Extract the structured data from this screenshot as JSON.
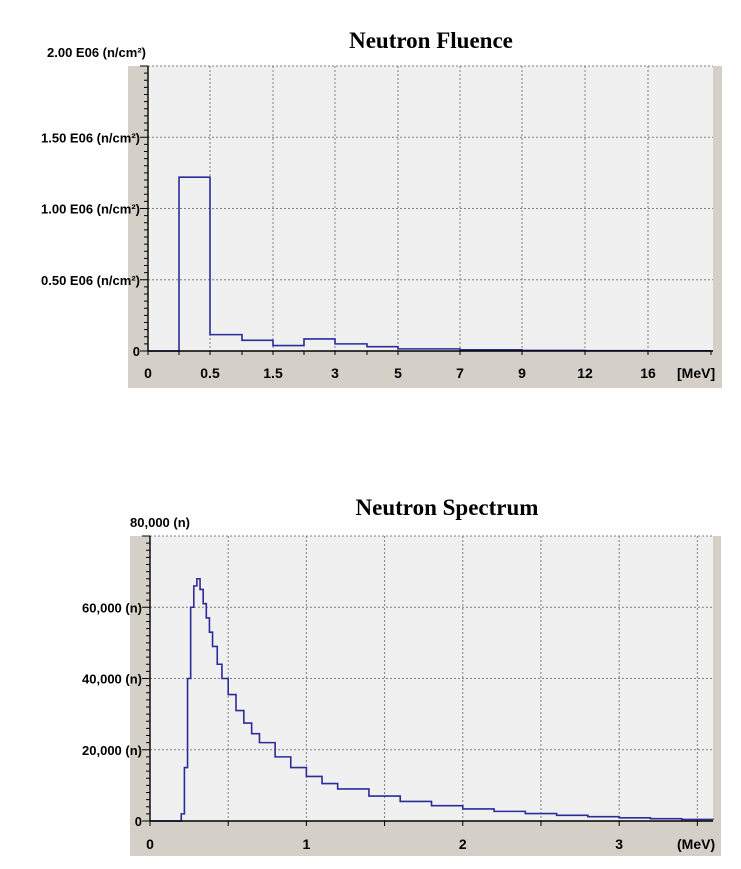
{
  "colors": {
    "line": "#2b2b9a",
    "plot_bg": "#f0f0f0",
    "axis_strip": "#d4d0c8",
    "grid": "#808080"
  },
  "chart_data": [
    {
      "type": "line",
      "style": "step",
      "title": "Neutron Fluence",
      "ylabel_unit": "(n/cm²)",
      "xlabel": "",
      "x_unit_label": "[MeV]",
      "x_tick_labels": [
        "0",
        "0.5",
        "1.5",
        "3",
        "5",
        "7",
        "9",
        "12",
        "16"
      ],
      "y_tick_labels": [
        "0",
        "0.50 E06 (n/cm²)",
        "1.00 E06 (n/cm²)",
        "1.50 E06 (n/cm²)",
        "2.00 E06 (n/cm²)"
      ],
      "ylim": [
        0,
        2000000
      ],
      "grid": true,
      "x_scale": "categorical-bins",
      "series": [
        {
          "bins": [
            {
              "from": "0",
              "to": "0.25",
              "value": 0
            },
            {
              "from": "0.25",
              "to": "0.5",
              "value": 1220000
            },
            {
              "from": "0.5",
              "to": "1",
              "value": 115000
            },
            {
              "from": "1",
              "to": "1.5",
              "value": 75000
            },
            {
              "from": "1.5",
              "to": "2",
              "value": 38000
            },
            {
              "from": "2",
              "to": "3",
              "value": 85000
            },
            {
              "from": "3",
              "to": "4",
              "value": 50000
            },
            {
              "from": "4",
              "to": "5",
              "value": 30000
            },
            {
              "from": "5",
              "to": "7",
              "value": 15000
            },
            {
              "from": "7",
              "to": "9",
              "value": 8000
            },
            {
              "from": "9",
              "to": "12",
              "value": 4000
            },
            {
              "from": "12",
              "to": "16",
              "value": 2000
            },
            {
              "from": "16",
              "to": "20",
              "value": 1000
            }
          ]
        }
      ]
    },
    {
      "type": "line",
      "style": "step",
      "title": "Neutron Spectrum",
      "x_unit_label": "(MeV)",
      "x_tick_labels": [
        "0",
        "1",
        "2",
        "3"
      ],
      "y_tick_labels": [
        "0",
        "20,000 (n)",
        "40,000 (n)",
        "60,000 (n)",
        "80,000 (n)"
      ],
      "xlim": [
        0,
        3.6
      ],
      "ylim": [
        0,
        80000
      ],
      "grid": true,
      "series": [
        {
          "x": [
            0,
            0.18,
            0.2,
            0.22,
            0.24,
            0.26,
            0.28,
            0.3,
            0.32,
            0.34,
            0.36,
            0.38,
            0.4,
            0.43,
            0.46,
            0.5,
            0.55,
            0.6,
            0.65,
            0.7,
            0.8,
            0.9,
            1.0,
            1.1,
            1.2,
            1.4,
            1.6,
            1.8,
            2.0,
            2.2,
            2.4,
            2.6,
            2.8,
            3.0,
            3.2,
            3.4,
            3.6
          ],
          "y": [
            0,
            0,
            2000,
            15000,
            40000,
            60000,
            66000,
            68000,
            65000,
            61000,
            57000,
            53000,
            49000,
            44000,
            40000,
            35500,
            31000,
            27500,
            24500,
            22000,
            18000,
            15000,
            12500,
            10500,
            9000,
            7000,
            5500,
            4300,
            3400,
            2700,
            2100,
            1600,
            1200,
            900,
            650,
            450,
            300
          ]
        }
      ]
    }
  ]
}
